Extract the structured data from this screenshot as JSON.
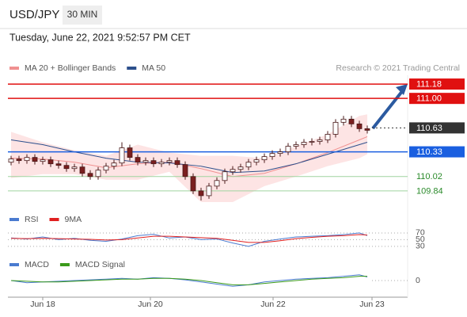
{
  "header": {
    "symbol": "USD/JPY",
    "interval": "30 MIN",
    "timestamp": "Tuesday, June 22, 2021 9:52:57 PM CET",
    "copyright": "Research © 2021 Trading Central"
  },
  "chart_data": [
    {
      "type": "candlestick",
      "xlim": [
        -0.4,
        50.1
      ],
      "ylim": [
        109.63,
        111.29
      ],
      "up_color": "#ffffff",
      "down_color": "#7a1f1f",
      "wick_color": "#4a1a1a",
      "band_color": "#fde4e4",
      "open": [
        110.2,
        110.24,
        110.22,
        110.26,
        110.21,
        110.23,
        110.18,
        110.16,
        110.12,
        110.14,
        110.06,
        110.02,
        110.1,
        110.15,
        110.19,
        110.38,
        110.26,
        110.2,
        110.22,
        110.18,
        110.2,
        110.22,
        110.17,
        110.02,
        109.84,
        109.78,
        109.9,
        109.97,
        110.08,
        110.11,
        110.14,
        110.2,
        110.23,
        110.27,
        110.31,
        110.33,
        110.4,
        110.42,
        110.45,
        110.46,
        110.48,
        110.55,
        110.7,
        110.74,
        110.68,
        110.62
      ],
      "high": [
        110.28,
        110.28,
        110.3,
        110.3,
        110.27,
        110.27,
        110.22,
        110.2,
        110.18,
        110.18,
        110.1,
        110.14,
        110.19,
        110.23,
        110.45,
        110.42,
        110.3,
        110.26,
        110.26,
        110.24,
        110.26,
        110.26,
        110.21,
        110.06,
        109.88,
        109.94,
        110.01,
        110.12,
        110.15,
        110.18,
        110.24,
        110.27,
        110.31,
        110.35,
        110.37,
        110.44,
        110.46,
        110.49,
        110.5,
        110.52,
        110.59,
        110.74,
        110.78,
        110.78,
        110.72,
        110.66
      ],
      "low": [
        110.16,
        110.18,
        110.18,
        110.17,
        110.17,
        110.14,
        110.12,
        110.08,
        110.08,
        110.02,
        109.98,
        109.98,
        110.06,
        110.11,
        110.15,
        110.22,
        110.16,
        110.16,
        110.14,
        110.14,
        110.16,
        110.13,
        109.98,
        109.8,
        109.72,
        109.74,
        109.86,
        109.93,
        110.04,
        110.07,
        110.1,
        110.16,
        110.19,
        110.23,
        110.27,
        110.29,
        110.36,
        110.38,
        110.41,
        110.42,
        110.44,
        110.51,
        110.66,
        110.64,
        110.58,
        110.56
      ],
      "close": [
        110.24,
        110.22,
        110.26,
        110.21,
        110.23,
        110.18,
        110.16,
        110.12,
        110.14,
        110.06,
        110.02,
        110.1,
        110.15,
        110.19,
        110.38,
        110.26,
        110.2,
        110.22,
        110.18,
        110.2,
        110.22,
        110.17,
        110.02,
        109.84,
        109.78,
        109.9,
        109.97,
        110.08,
        110.11,
        110.14,
        110.2,
        110.23,
        110.27,
        110.31,
        110.33,
        110.4,
        110.42,
        110.45,
        110.46,
        110.48,
        110.55,
        110.7,
        110.74,
        110.68,
        110.62,
        110.6
      ],
      "series": [
        {
          "name": "MA 20 + Bollinger Bands",
          "color": "#f09090",
          "x": [
            0,
            4,
            8,
            12,
            16,
            20,
            24,
            28,
            32,
            36,
            40,
            44,
            45
          ],
          "values": [
            110.25,
            110.24,
            110.2,
            110.13,
            110.18,
            110.2,
            110.12,
            110.02,
            110.06,
            110.18,
            110.32,
            110.48,
            110.52
          ],
          "upper": [
            110.58,
            110.45,
            110.35,
            110.28,
            110.42,
            110.32,
            110.28,
            110.28,
            110.25,
            110.4,
            110.55,
            110.78,
            110.8
          ],
          "lower": [
            110.0,
            110.05,
            110.05,
            109.98,
            109.98,
            110.08,
            109.7,
            109.7,
            109.9,
            110.02,
            110.15,
            110.25,
            110.3
          ]
        },
        {
          "name": "MA 50",
          "color": "#2c4f8c",
          "x": [
            0,
            4,
            8,
            12,
            16,
            20,
            24,
            28,
            32,
            36,
            40,
            44,
            45
          ],
          "values": [
            110.48,
            110.42,
            110.33,
            110.25,
            110.2,
            110.19,
            110.15,
            110.07,
            110.09,
            110.18,
            110.3,
            110.42,
            110.45
          ]
        }
      ],
      "levels": [
        {
          "value": 111.18,
          "label": "111.18",
          "color": "#e01010",
          "kind": "box",
          "line": "solid"
        },
        {
          "value": 111.0,
          "label": "111.00",
          "color": "#e01010",
          "kind": "box",
          "line": "solid"
        },
        {
          "value": 110.63,
          "label": "110.63",
          "color": "#333333",
          "kind": "box",
          "line": "dotted"
        },
        {
          "value": 110.33,
          "label": "110.33",
          "color": "#1a5fe0",
          "kind": "box",
          "line": "solid"
        },
        {
          "value": 110.02,
          "label": "110.02",
          "color": "#2a8a2a",
          "kind": "text",
          "line": "solid"
        },
        {
          "value": 109.84,
          "label": "109.84",
          "color": "#2a8a2a",
          "kind": "text",
          "line": "solid"
        }
      ]
    },
    {
      "type": "line",
      "xlim": [
        -0.4,
        50.1
      ],
      "ylim": [
        18,
        84
      ],
      "yticks": [
        70,
        50,
        30
      ],
      "series": [
        {
          "name": "RSI",
          "color": "#4a7bd0",
          "x": [
            0,
            2,
            4,
            6,
            8,
            10,
            12,
            14,
            16,
            18,
            20,
            22,
            24,
            26,
            28,
            30,
            32,
            34,
            36,
            38,
            40,
            42,
            44,
            45
          ],
          "values": [
            55,
            52,
            58,
            50,
            54,
            48,
            45,
            52,
            62,
            66,
            55,
            58,
            50,
            52,
            40,
            30,
            45,
            52,
            58,
            60,
            62,
            65,
            70,
            62
          ]
        },
        {
          "name": "9MA",
          "color": "#e02020",
          "x": [
            0,
            2,
            4,
            6,
            8,
            10,
            12,
            14,
            16,
            18,
            20,
            22,
            24,
            26,
            28,
            30,
            32,
            34,
            36,
            38,
            40,
            42,
            44,
            45
          ],
          "values": [
            54,
            53,
            54,
            53,
            52,
            51,
            49,
            50,
            55,
            60,
            60,
            58,
            56,
            54,
            48,
            42,
            42,
            47,
            53,
            57,
            60,
            62,
            65,
            64
          ]
        }
      ]
    },
    {
      "type": "line",
      "xlim": [
        -0.4,
        50.1
      ],
      "ylim": [
        -0.2,
        0.1
      ],
      "yticks": [
        0
      ],
      "xticks": [
        {
          "value": 4,
          "label": "Jun 18"
        },
        {
          "value": 17.6,
          "label": "Jun 20"
        },
        {
          "value": 33.1,
          "label": "Jun 22"
        },
        {
          "value": 45.6,
          "label": "Jun 23"
        }
      ],
      "series": [
        {
          "name": "MACD",
          "color": "#4a7bd0",
          "x": [
            0,
            2,
            4,
            6,
            8,
            10,
            12,
            14,
            16,
            18,
            20,
            22,
            24,
            26,
            28,
            30,
            32,
            34,
            36,
            38,
            40,
            42,
            44,
            45
          ],
          "values": [
            0.0,
            -0.03,
            -0.02,
            -0.01,
            0.0,
            0.01,
            0.02,
            0.03,
            0.02,
            0.04,
            0.03,
            0.01,
            -0.02,
            -0.05,
            -0.08,
            -0.06,
            -0.02,
            0.0,
            0.02,
            0.03,
            0.04,
            0.06,
            0.08,
            0.05
          ]
        },
        {
          "name": "MACD Signal",
          "color": "#3a9a1a",
          "x": [
            0,
            2,
            4,
            6,
            8,
            10,
            12,
            14,
            16,
            18,
            20,
            22,
            24,
            26,
            28,
            30,
            32,
            34,
            36,
            38,
            40,
            42,
            44,
            45
          ],
          "values": [
            0.0,
            -0.01,
            -0.02,
            -0.02,
            -0.01,
            0.0,
            0.01,
            0.02,
            0.02,
            0.03,
            0.03,
            0.02,
            0.0,
            -0.03,
            -0.06,
            -0.06,
            -0.04,
            -0.02,
            0.0,
            0.02,
            0.03,
            0.04,
            0.06,
            0.06
          ]
        }
      ]
    }
  ]
}
